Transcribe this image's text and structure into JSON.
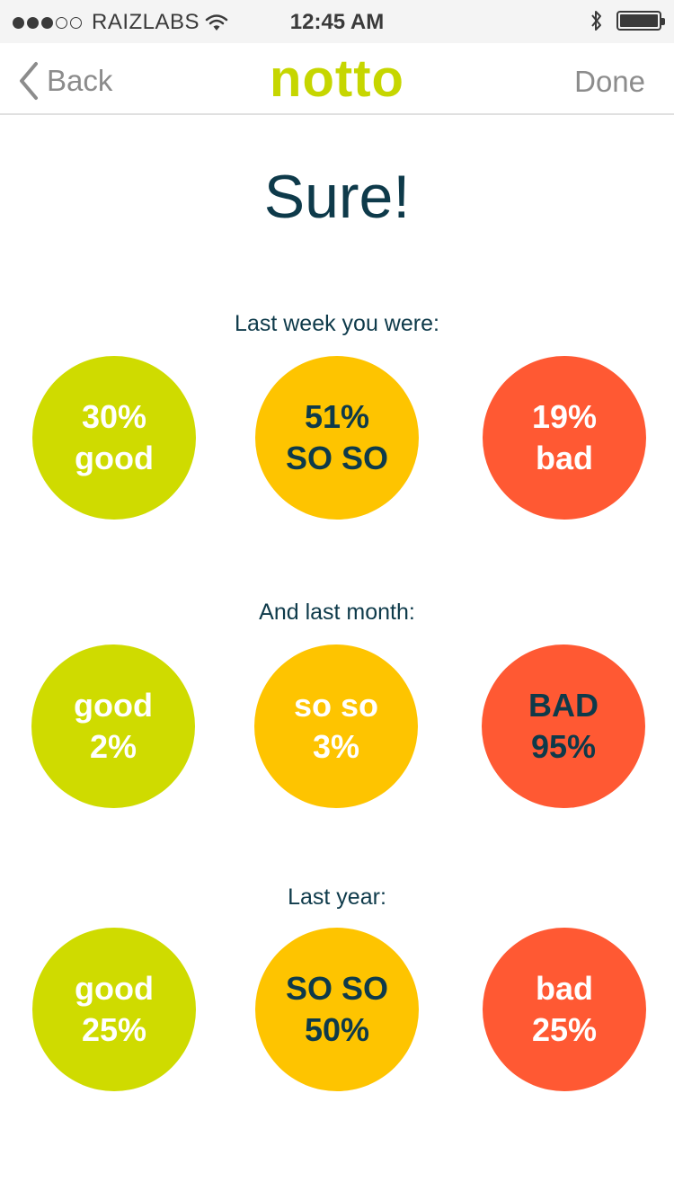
{
  "status_bar": {
    "carrier": "RAIZLABS",
    "time": "12:45 AM",
    "signal_icon": "signal-dots-icon",
    "wifi_icon": "wifi-icon",
    "bluetooth_icon": "bluetooth-icon",
    "battery_icon": "battery-icon"
  },
  "nav": {
    "back_label": "Back",
    "logo": "notto",
    "done_label": "Done"
  },
  "page_title": "Sure!",
  "colors": {
    "good": "#cfdb00",
    "soso": "#fec400",
    "bad": "#ff5933",
    "text_dark": "#0e3a4a",
    "logo": "#c6d600"
  },
  "sections": [
    {
      "label": "Last week you were:",
      "items": [
        {
          "line1": "30%",
          "line2": "good"
        },
        {
          "line1": "51%",
          "line2": "SO SO"
        },
        {
          "line1": "19%",
          "line2": "bad"
        }
      ]
    },
    {
      "label": "And last month:",
      "items": [
        {
          "line1": "good",
          "line2": "2%"
        },
        {
          "line1": "so so",
          "line2": "3%"
        },
        {
          "line1": "BAD",
          "line2": "95%"
        }
      ]
    },
    {
      "label": "Last year:",
      "items": [
        {
          "line1": "good",
          "line2": "25%"
        },
        {
          "line1": "SO SO",
          "line2": "50%"
        },
        {
          "line1": "bad",
          "line2": "25%"
        }
      ]
    }
  ]
}
